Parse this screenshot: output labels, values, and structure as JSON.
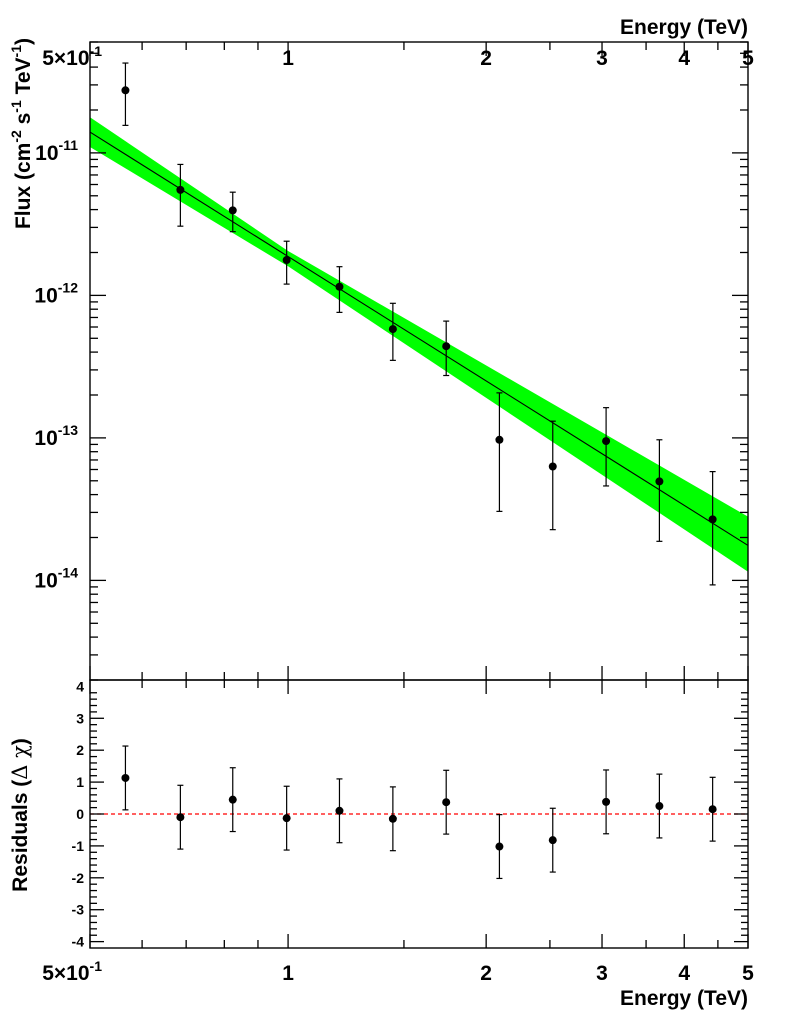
{
  "chart_data": [
    {
      "type": "scatter",
      "panel": "spectrum",
      "xlabel": "Energy (TeV)",
      "ylabel_main": "Flux (cm",
      "ylabel_exp1": "-2",
      "ylabel_mid1": " s",
      "ylabel_exp2": "-1",
      "ylabel_mid2": " TeV",
      "ylabel_exp3": "-1",
      "ylabel_end": ")",
      "x_scale": "log",
      "y_scale": "log",
      "xlim": [
        0.5,
        5
      ],
      "ylim": [
        2e-15,
        6e-11
      ],
      "x_tick_labels": [
        {
          "value": 0.5,
          "mant": "5×10",
          "exp": "-1"
        },
        {
          "value": 1,
          "mant": "1",
          "exp": ""
        },
        {
          "value": 2,
          "mant": "2",
          "exp": ""
        },
        {
          "value": 3,
          "mant": "3",
          "exp": ""
        },
        {
          "value": 4,
          "mant": "4",
          "exp": ""
        },
        {
          "value": 5,
          "mant": "5",
          "exp": ""
        }
      ],
      "y_tick_labels": [
        {
          "value": 1e-11,
          "mant": "10",
          "exp": "-11"
        },
        {
          "value": 1e-12,
          "mant": "10",
          "exp": "-12"
        },
        {
          "value": 1e-13,
          "mant": "10",
          "exp": "-13"
        },
        {
          "value": 1e-14,
          "mant": "10",
          "exp": "-14"
        }
      ],
      "points": [
        {
          "x": 0.566,
          "y": 2.75e-11,
          "ylo": 1.56e-11,
          "yhi": 4.27e-11
        },
        {
          "x": 0.686,
          "y": 5.5e-12,
          "ylo": 3.06e-12,
          "yhi": 8.3e-12
        },
        {
          "x": 0.824,
          "y": 3.95e-12,
          "ylo": 2.8e-12,
          "yhi": 5.3e-12
        },
        {
          "x": 0.995,
          "y": 1.77e-12,
          "ylo": 1.2e-12,
          "yhi": 2.4e-12
        },
        {
          "x": 1.197,
          "y": 1.15e-12,
          "ylo": 7.6e-13,
          "yhi": 1.59e-12
        },
        {
          "x": 1.443,
          "y": 5.8e-13,
          "ylo": 3.5e-13,
          "yhi": 8.8e-13
        },
        {
          "x": 1.739,
          "y": 4.4e-13,
          "ylo": 2.74e-13,
          "yhi": 6.6e-13
        },
        {
          "x": 2.095,
          "y": 9.7e-14,
          "ylo": 3.05e-14,
          "yhi": 2.07e-13
        },
        {
          "x": 2.525,
          "y": 6.3e-14,
          "ylo": 2.27e-14,
          "yhi": 1.31e-13
        },
        {
          "x": 3.043,
          "y": 9.5e-14,
          "ylo": 4.6e-14,
          "yhi": 1.63e-13
        },
        {
          "x": 3.667,
          "y": 4.95e-14,
          "ylo": 1.88e-14,
          "yhi": 9.7e-14
        },
        {
          "x": 4.418,
          "y": 2.68e-14,
          "ylo": 9.3e-15,
          "yhi": 5.8e-14
        }
      ],
      "fit_line": [
        {
          "x": 0.5,
          "y": 1.4e-11
        },
        {
          "x": 5,
          "y": 1.76e-14
        }
      ],
      "band_upper": [
        {
          "x": 0.5,
          "y": 1.78e-11
        },
        {
          "x": 1,
          "y": 2.05e-12
        },
        {
          "x": 5,
          "y": 2.8e-14
        }
      ],
      "band_lower": [
        {
          "x": 0.5,
          "y": 1.1e-11
        },
        {
          "x": 1,
          "y": 1.6e-12
        },
        {
          "x": 5,
          "y": 1.15e-14
        }
      ],
      "band_color": "#00ff00",
      "line_color": "#000000",
      "marker_color": "#000000"
    },
    {
      "type": "scatter",
      "panel": "residuals",
      "xlabel": "Energy (TeV)",
      "ylabel_main": "Residuals (",
      "ylabel_symbol": "Δ χ",
      "ylabel_end": ")",
      "x_scale": "log",
      "xlim": [
        0.5,
        5
      ],
      "ylim": [
        -4.2,
        4.2
      ],
      "y_tick_labels": [
        "-4",
        "-3",
        "-2",
        "-1",
        "0",
        "1",
        "2",
        "3",
        "4"
      ],
      "zero_line_color": "#ff0000",
      "points": [
        {
          "x": 0.566,
          "y": 1.13,
          "ylo": 0.13,
          "yhi": 2.13
        },
        {
          "x": 0.686,
          "y": -0.1,
          "ylo": -1.1,
          "yhi": 0.9
        },
        {
          "x": 0.824,
          "y": 0.45,
          "ylo": -0.55,
          "yhi": 1.45
        },
        {
          "x": 0.995,
          "y": -0.13,
          "ylo": -1.13,
          "yhi": 0.87
        },
        {
          "x": 1.197,
          "y": 0.1,
          "ylo": -0.9,
          "yhi": 1.1
        },
        {
          "x": 1.443,
          "y": -0.15,
          "ylo": -1.15,
          "yhi": 0.85
        },
        {
          "x": 1.739,
          "y": 0.37,
          "ylo": -0.63,
          "yhi": 1.37
        },
        {
          "x": 2.095,
          "y": -1.02,
          "ylo": -2.02,
          "yhi": -0.02
        },
        {
          "x": 2.525,
          "y": -0.82,
          "ylo": -1.82,
          "yhi": 0.18
        },
        {
          "x": 3.043,
          "y": 0.38,
          "ylo": -0.62,
          "yhi": 1.38
        },
        {
          "x": 3.667,
          "y": 0.25,
          "ylo": -0.75,
          "yhi": 1.25
        },
        {
          "x": 4.418,
          "y": 0.15,
          "ylo": -0.85,
          "yhi": 1.15
        }
      ]
    }
  ]
}
